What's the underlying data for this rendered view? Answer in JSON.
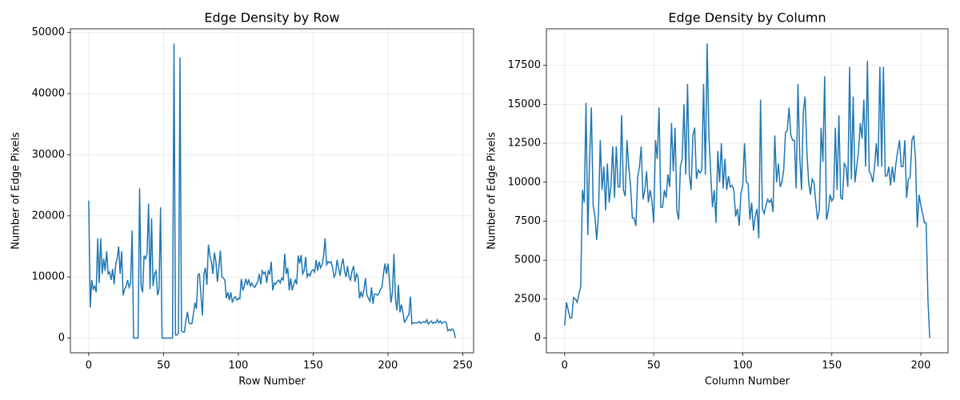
{
  "chart_data": [
    {
      "type": "line",
      "title": "Edge Density by Row",
      "xlabel": "Row Number",
      "ylabel": "Number of Edge Pixels",
      "color": "#1f77b4",
      "grid": true,
      "xlim": [
        -12.25,
        257.25
      ],
      "ylim": [
        -2410,
        50610
      ],
      "xticks": [
        0,
        50,
        100,
        150,
        200,
        250
      ],
      "yticks": [
        0,
        10000,
        20000,
        30000,
        40000,
        50000
      ],
      "x": [
        0,
        1,
        2,
        3,
        4,
        5,
        6,
        7,
        8,
        9,
        10,
        11,
        12,
        13,
        14,
        15,
        16,
        17,
        18,
        19,
        20,
        21,
        22,
        23,
        24,
        25,
        26,
        27,
        28,
        29,
        30,
        31,
        32,
        33,
        34,
        35,
        36,
        37,
        38,
        39,
        40,
        41,
        42,
        43,
        44,
        45,
        46,
        47,
        48,
        49,
        50,
        51,
        52,
        53,
        54,
        55,
        56,
        57,
        58,
        59,
        60,
        61,
        62,
        63,
        64,
        65,
        66,
        67,
        68,
        69,
        70,
        71,
        72,
        73,
        74,
        75,
        76,
        77,
        78,
        79,
        80,
        81,
        82,
        83,
        84,
        85,
        86,
        87,
        88,
        89,
        90,
        91,
        92,
        93,
        94,
        95,
        96,
        97,
        98,
        99,
        100,
        101,
        102,
        103,
        104,
        105,
        106,
        107,
        108,
        109,
        110,
        111,
        112,
        113,
        114,
        115,
        116,
        117,
        118,
        119,
        120,
        121,
        122,
        123,
        124,
        125,
        126,
        127,
        128,
        129,
        130,
        131,
        132,
        133,
        134,
        135,
        136,
        137,
        138,
        139,
        140,
        141,
        142,
        143,
        144,
        145,
        146,
        147,
        148,
        149,
        150,
        151,
        152,
        153,
        154,
        155,
        156,
        157,
        158,
        159,
        160,
        161,
        162,
        163,
        164,
        165,
        166,
        167,
        168,
        169,
        170,
        171,
        172,
        173,
        174,
        175,
        176,
        177,
        178,
        179,
        180,
        181,
        182,
        183,
        184,
        185,
        186,
        187,
        188,
        189,
        190,
        191,
        192,
        193,
        194,
        195,
        196,
        197,
        198,
        199,
        200,
        201,
        202,
        203,
        204,
        205,
        206,
        207,
        208,
        209,
        210,
        211,
        212,
        213,
        214,
        215,
        216,
        217,
        218,
        219,
        220,
        221,
        222,
        223,
        224,
        225,
        226,
        227,
        228,
        229,
        230,
        231,
        232,
        233,
        234,
        235,
        236,
        237,
        238,
        239,
        240,
        241,
        242,
        243,
        244,
        245
      ],
      "values": [
        22500,
        5000,
        9500,
        8000,
        8500,
        7500,
        16300,
        9000,
        16300,
        10500,
        13000,
        11000,
        14200,
        10500,
        10800,
        9500,
        11300,
        8800,
        12000,
        13000,
        15000,
        10500,
        14200,
        7000,
        8000,
        8500,
        9500,
        8300,
        9000,
        17600,
        0,
        0,
        0,
        0,
        24500,
        8500,
        7500,
        13500,
        13000,
        13800,
        22000,
        8000,
        19600,
        8500,
        10500,
        11000,
        7000,
        8000,
        21400,
        0,
        0,
        0,
        0,
        0,
        0,
        0,
        0,
        48200,
        500,
        500,
        800,
        45900,
        1200,
        1000,
        1000,
        3000,
        4300,
        2500,
        2300,
        2400,
        4000,
        5800,
        4800,
        10300,
        10500,
        7000,
        3700,
        10500,
        11500,
        8700,
        15300,
        13500,
        12500,
        10500,
        14000,
        12500,
        9200,
        11500,
        14300,
        10000,
        9800,
        9500,
        6500,
        7500,
        6200,
        7500,
        5800,
        6500,
        6800,
        6200,
        6500,
        6400,
        9700,
        7800,
        8500,
        9700,
        8800,
        9500,
        8500,
        9000,
        8500,
        8300,
        8800,
        9200,
        10500,
        8800,
        11000,
        10500,
        10800,
        9000,
        11000,
        10500,
        12500,
        7800,
        9000,
        8800,
        9300,
        9500,
        9000,
        9800,
        9500,
        13800,
        10500,
        11500,
        7800,
        9800,
        7800,
        8800,
        9500,
        8800,
        13500,
        12200,
        13600,
        10500,
        11000,
        13300,
        10000,
        10500,
        10200,
        11000,
        11200,
        10800,
        12800,
        11000,
        12500,
        11500,
        12000,
        13500,
        16300,
        12000,
        12500,
        12300,
        12500,
        11500,
        10000,
        10500,
        12800,
        11500,
        10200,
        12000,
        13000,
        11000,
        10000,
        11800,
        10000,
        9500,
        11000,
        11800,
        9200,
        10500,
        10000,
        6500,
        7500,
        6700,
        8000,
        9800,
        7000,
        6500,
        6000,
        8300,
        5600,
        7200,
        7200,
        7000,
        7300,
        8000,
        8300,
        10500,
        12200,
        10500,
        12200,
        9500,
        5800,
        7500,
        13800,
        6500,
        4500,
        8700,
        4200,
        5500,
        4200,
        2600,
        2900,
        3500,
        3800,
        6800,
        2300,
        2500,
        2500,
        2500,
        2500,
        2700,
        2400,
        2600,
        2700,
        2500,
        3000,
        2300,
        2600,
        2800,
        2400,
        2600,
        2500,
        3000,
        2500,
        2800,
        2400,
        2600,
        2700,
        2500,
        1200,
        1400,
        1200,
        1500,
        1300,
        0
      ]
    },
    {
      "type": "line",
      "title": "Edge Density by Column",
      "xlabel": "Column Number",
      "ylabel": "Number of Edge Pixels",
      "color": "#1f77b4",
      "grid": true,
      "xlim": [
        -10.25,
        215.25
      ],
      "ylim": [
        -945,
        19845
      ],
      "xticks": [
        0,
        50,
        100,
        150,
        200
      ],
      "yticks": [
        0,
        2500,
        5000,
        7500,
        10000,
        12500,
        15000,
        17500
      ],
      "x": [
        0,
        1,
        2,
        3,
        4,
        5,
        6,
        7,
        8,
        9,
        10,
        11,
        12,
        13,
        14,
        15,
        16,
        17,
        18,
        19,
        20,
        21,
        22,
        23,
        24,
        25,
        26,
        27,
        28,
        29,
        30,
        31,
        32,
        33,
        34,
        35,
        36,
        37,
        38,
        39,
        40,
        41,
        42,
        43,
        44,
        45,
        46,
        47,
        48,
        49,
        50,
        51,
        52,
        53,
        54,
        55,
        56,
        57,
        58,
        59,
        60,
        61,
        62,
        63,
        64,
        65,
        66,
        67,
        68,
        69,
        70,
        71,
        72,
        73,
        74,
        75,
        76,
        77,
        78,
        79,
        80,
        81,
        82,
        83,
        84,
        85,
        86,
        87,
        88,
        89,
        90,
        91,
        92,
        93,
        94,
        95,
        96,
        97,
        98,
        99,
        100,
        101,
        102,
        103,
        104,
        105,
        106,
        107,
        108,
        109,
        110,
        111,
        112,
        113,
        114,
        115,
        116,
        117,
        118,
        119,
        120,
        121,
        122,
        123,
        124,
        125,
        126,
        127,
        128,
        129,
        130,
        131,
        132,
        133,
        134,
        135,
        136,
        137,
        138,
        139,
        140,
        141,
        142,
        143,
        144,
        145,
        146,
        147,
        148,
        149,
        150,
        151,
        152,
        153,
        154,
        155,
        156,
        157,
        158,
        159,
        160,
        161,
        162,
        163,
        164,
        165,
        166,
        167,
        168,
        169,
        170,
        171,
        172,
        173,
        174,
        175,
        176,
        177,
        178,
        179,
        180,
        181,
        182,
        183,
        184,
        185,
        186,
        187,
        188,
        189,
        190,
        191,
        192,
        193,
        194,
        195,
        196,
        197,
        198,
        199,
        200,
        201,
        202,
        203,
        204,
        205
      ],
      "values": [
        800,
        2300,
        1800,
        1300,
        1300,
        2600,
        2500,
        2300,
        2800,
        3300,
        9500,
        8700,
        15100,
        6600,
        11500,
        14800,
        8500,
        7800,
        6300,
        8000,
        12700,
        9500,
        11000,
        8200,
        11200,
        8700,
        9800,
        12300,
        9000,
        12300,
        9700,
        9700,
        14300,
        9500,
        9100,
        12700,
        11000,
        9800,
        7700,
        7700,
        7200,
        10300,
        11000,
        12300,
        8900,
        9500,
        10700,
        8700,
        9500,
        8800,
        7400,
        12700,
        11500,
        14800,
        8400,
        8400,
        9500,
        9000,
        10500,
        9700,
        13800,
        10700,
        13500,
        8200,
        7600,
        11000,
        11500,
        15000,
        10500,
        16300,
        10500,
        9500,
        13000,
        13500,
        10200,
        10800,
        10600,
        10800,
        16300,
        10500,
        18900,
        13000,
        10600,
        8400,
        9500,
        7400,
        12000,
        10000,
        12500,
        9600,
        11500,
        9500,
        10400,
        9700,
        9800,
        9500,
        7800,
        8300,
        7200,
        9300,
        9800,
        12500,
        10000,
        9900,
        7600,
        8700,
        6900,
        7800,
        8300,
        6400,
        15300,
        8300,
        8000,
        8500,
        8900,
        8700,
        8900,
        8100,
        13000,
        10000,
        11200,
        9700,
        10000,
        10800,
        13200,
        13300,
        14800,
        13000,
        12700,
        12700,
        9600,
        16300,
        11700,
        9500,
        14500,
        15500,
        12000,
        10000,
        9200,
        10200,
        10000,
        8700,
        7600,
        8200,
        13500,
        11300,
        16800,
        7600,
        8100,
        9200,
        8800,
        9000,
        13500,
        9500,
        14300,
        9000,
        8900,
        11200,
        11000,
        9700,
        17400,
        10200,
        15500,
        10000,
        11000,
        12000,
        13800,
        12800,
        15300,
        11000,
        17800,
        10700,
        10500,
        10000,
        11000,
        12500,
        11000,
        17400,
        11000,
        17400,
        10400,
        10400,
        11000,
        9800,
        11000,
        10000,
        11200,
        12000,
        12700,
        11000,
        11000,
        12700,
        9000,
        10200,
        10300,
        12700,
        13000,
        11500,
        7100,
        9200,
        8500,
        8000,
        7400,
        7400,
        2400,
        0
      ]
    }
  ]
}
